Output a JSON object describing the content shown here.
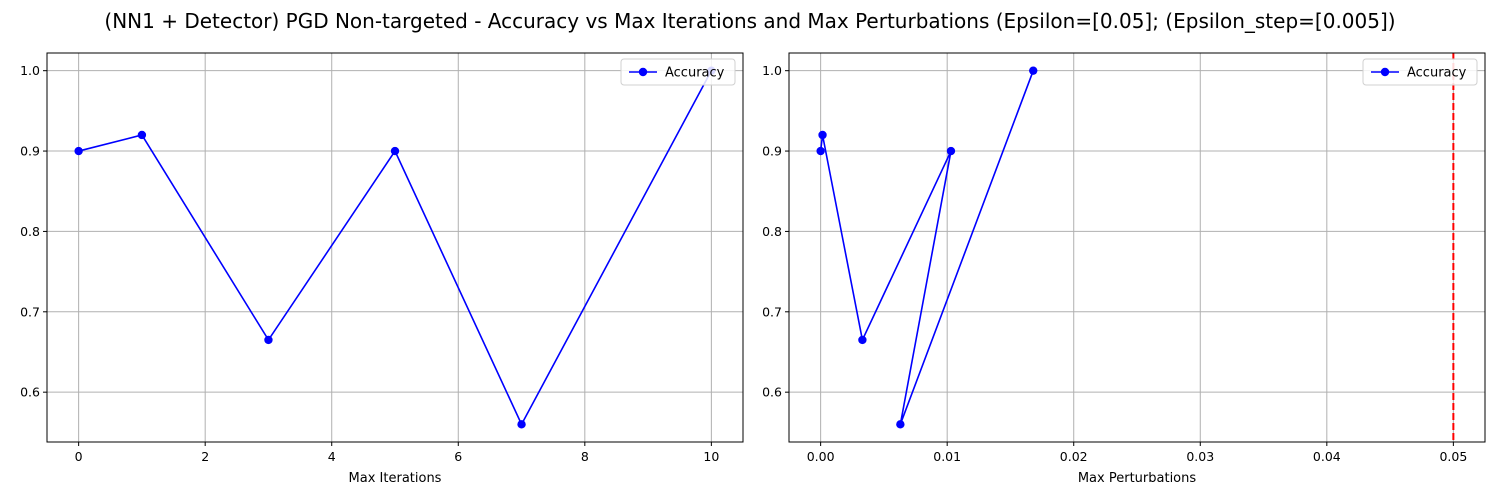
{
  "title": "(NN1 + Detector) PGD Non-targeted - Accuracy vs Max Iterations and Max Perturbations (Epsilon=[0.05]; (Epsilon_step=[0.005])",
  "colors": {
    "series": "#0000ff",
    "reference_line": "#ff0000",
    "grid": "#b0b0b0"
  },
  "chart_data": [
    {
      "type": "line",
      "xlabel": "Max Iterations",
      "ylabel": "",
      "xlim": [
        -0.5,
        10.5
      ],
      "ylim": [
        0.538,
        1.022
      ],
      "xticks": [
        0,
        2,
        4,
        6,
        8,
        10
      ],
      "xtick_labels": [
        "0",
        "2",
        "4",
        "6",
        "8",
        "10"
      ],
      "yticks": [
        0.6,
        0.7,
        0.8,
        0.9,
        1.0
      ],
      "ytick_labels": [
        "0.6",
        "0.7",
        "0.8",
        "0.9",
        "1.0"
      ],
      "grid": true,
      "legend_position": "top-right",
      "series": [
        {
          "name": "Accuracy",
          "marker": "circle",
          "x": [
            0,
            1,
            3,
            5,
            7,
            10
          ],
          "y": [
            0.9,
            0.92,
            0.665,
            0.9,
            0.56,
            1.0
          ]
        }
      ]
    },
    {
      "type": "line",
      "xlabel": "Max Perturbations",
      "ylabel": "",
      "xlim": [
        -0.0025,
        0.0525
      ],
      "ylim": [
        0.538,
        1.022
      ],
      "xticks": [
        0.0,
        0.01,
        0.02,
        0.03,
        0.04,
        0.05
      ],
      "xtick_labels": [
        "0.00",
        "0.01",
        "0.02",
        "0.03",
        "0.04",
        "0.05"
      ],
      "yticks": [
        0.6,
        0.7,
        0.8,
        0.9,
        1.0
      ],
      "ytick_labels": [
        "0.6",
        "0.7",
        "0.8",
        "0.9",
        "1.0"
      ],
      "grid": true,
      "legend_position": "top-right",
      "reference_line": {
        "axis": "x",
        "value": 0.05,
        "style": "dashed"
      },
      "series": [
        {
          "name": "Accuracy",
          "marker": "circle",
          "x": [
            0.0,
            0.00015,
            0.0033,
            0.0103,
            0.0063,
            0.0168
          ],
          "y": [
            0.9,
            0.92,
            0.665,
            0.9,
            0.56,
            1.0
          ]
        }
      ]
    }
  ]
}
